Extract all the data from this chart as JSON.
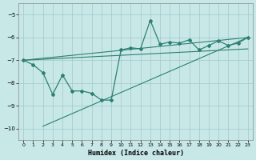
{
  "xlabel": "Humidex (Indice chaleur)",
  "ylabel": "",
  "bg_color": "#c8e8e8",
  "grid_color": "#a0c8c8",
  "line_color": "#2d7f72",
  "xlim": [
    -0.5,
    23.5
  ],
  "ylim": [
    -10.5,
    -4.5
  ],
  "yticks": [
    -10,
    -9,
    -8,
    -7,
    -6,
    -5
  ],
  "xticks": [
    0,
    1,
    2,
    3,
    4,
    5,
    6,
    7,
    8,
    9,
    10,
    11,
    12,
    13,
    14,
    15,
    16,
    17,
    18,
    19,
    20,
    21,
    22,
    23
  ],
  "series1": {
    "x": [
      0,
      1,
      2,
      3,
      4,
      5,
      6,
      7,
      8,
      9,
      10,
      11,
      12,
      13,
      14,
      15,
      16,
      17,
      18,
      19,
      20,
      21,
      22,
      23
    ],
    "y": [
      -7.0,
      -7.2,
      -7.55,
      -8.5,
      -7.65,
      -8.35,
      -8.35,
      -8.45,
      -8.75,
      -8.75,
      -6.55,
      -6.45,
      -6.5,
      -5.25,
      -6.3,
      -6.2,
      -6.25,
      -6.1,
      -6.55,
      -6.35,
      -6.15,
      -6.35,
      -6.25,
      -6.0
    ]
  },
  "series2": {
    "x": [
      0,
      23
    ],
    "y": [
      -7.0,
      -6.0
    ]
  },
  "series3": {
    "x": [
      2,
      23
    ],
    "y": [
      -9.9,
      -6.0
    ]
  },
  "series4": {
    "x": [
      0,
      23
    ],
    "y": [
      -7.0,
      -6.5
    ]
  }
}
